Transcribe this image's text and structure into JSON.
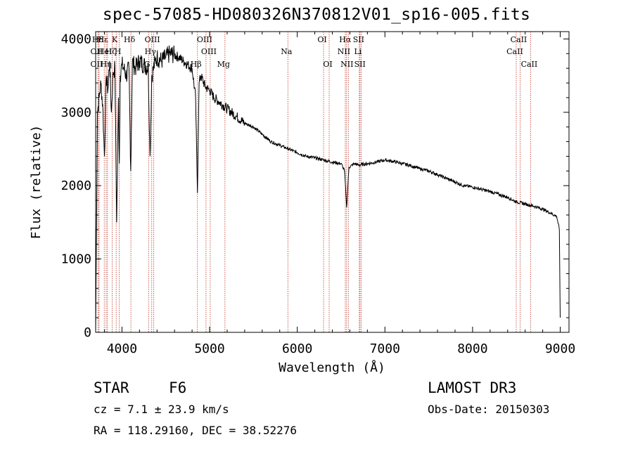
{
  "chart_data": {
    "type": "line",
    "title": "spec-57085-HD080326N370812V01_sp16-005.fits",
    "xlabel": "Wavelength (Å)",
    "ylabel": "Flux (relative)",
    "xlim": [
      3700,
      9100
    ],
    "ylim": [
      0,
      4100
    ],
    "x_ticks": [
      4000,
      5000,
      6000,
      7000,
      8000,
      9000
    ],
    "y_ticks": [
      0,
      1000,
      2000,
      3000,
      4000
    ],
    "series": [
      {
        "name": "spectrum",
        "x": [
          3700,
          3720,
          3740,
          3760,
          3780,
          3800,
          3820,
          3840,
          3860,
          3880,
          3900,
          3920,
          3940,
          3960,
          3970,
          3980,
          4000,
          4020,
          4050,
          4080,
          4100,
          4120,
          4150,
          4200,
          4250,
          4300,
          4320,
          4340,
          4360,
          4380,
          4400,
          4450,
          4500,
          4550,
          4600,
          4650,
          4700,
          4750,
          4800,
          4840,
          4861,
          4880,
          4900,
          4950,
          5000,
          5050,
          5100,
          5150,
          5200,
          5300,
          5400,
          5500,
          5600,
          5700,
          5800,
          5900,
          6000,
          6100,
          6200,
          6300,
          6400,
          6500,
          6540,
          6563,
          6590,
          6650,
          6700,
          6800,
          6900,
          7000,
          7100,
          7200,
          7300,
          7400,
          7500,
          7600,
          7700,
          7800,
          7900,
          8000,
          8100,
          8200,
          8300,
          8400,
          8500,
          8600,
          8700,
          8800,
          8900,
          8960,
          8990,
          9000
        ],
        "y": [
          0,
          3000,
          3200,
          3400,
          3100,
          2400,
          3500,
          3300,
          3700,
          3000,
          3550,
          3600,
          1500,
          3200,
          2300,
          3500,
          3650,
          3600,
          3500,
          3600,
          2200,
          3700,
          3600,
          3700,
          3650,
          3600,
          2400,
          3500,
          3600,
          3700,
          3750,
          3700,
          3750,
          3800,
          3780,
          3750,
          3700,
          3650,
          3600,
          3200,
          1900,
          3400,
          3500,
          3350,
          3300,
          3200,
          3150,
          3100,
          3050,
          2950,
          2850,
          2800,
          2700,
          2600,
          2550,
          2500,
          2450,
          2400,
          2380,
          2350,
          2320,
          2300,
          2200,
          1700,
          2250,
          2300,
          2280,
          2300,
          2320,
          2350,
          2330,
          2300,
          2270,
          2230,
          2200,
          2150,
          2100,
          2050,
          2000,
          1980,
          1950,
          1920,
          1880,
          1840,
          1780,
          1750,
          1720,
          1680,
          1620,
          1580,
          1400,
          200
        ]
      }
    ],
    "lines": [
      {
        "name": "Hδ",
        "wl": 3740,
        "row": 0
      },
      {
        "name": "OII",
        "wl": 3727,
        "row": 1
      },
      {
        "name": "OII",
        "wl": 3727,
        "row": 2
      },
      {
        "name": "Hε",
        "wl": 3798,
        "row": 0
      },
      {
        "name": "HeI",
        "wl": 3820,
        "row": 1
      },
      {
        "name": "Hη",
        "wl": 3835,
        "row": 2
      },
      {
        "name": "K",
        "wl": 3934,
        "row": 0
      },
      {
        "name": "H",
        "wl": 3969,
        "row": 1
      },
      {
        "name": "Hδ",
        "wl": 4102,
        "row": 0
      },
      {
        "name": "Hζ",
        "wl": 3889,
        "row": 1
      },
      {
        "name": "OIII",
        "wl": 4363,
        "row": 0
      },
      {
        "name": "Hγ",
        "wl": 4340,
        "row": 1
      },
      {
        "name": "G",
        "wl": 4304,
        "row": 2
      },
      {
        "name": "Hβ",
        "wl": 4861,
        "row": 2
      },
      {
        "name": "OIII",
        "wl": 4959,
        "row": 0
      },
      {
        "name": "OIII",
        "wl": 5007,
        "row": 1
      },
      {
        "name": "Mg",
        "wl": 5175,
        "row": 2
      },
      {
        "name": "Na",
        "wl": 5893,
        "row": 1
      },
      {
        "name": "OI",
        "wl": 6300,
        "row": 0
      },
      {
        "name": "OI",
        "wl": 6364,
        "row": 2
      },
      {
        "name": "Hα",
        "wl": 6563,
        "row": 0
      },
      {
        "name": "SII",
        "wl": 6716,
        "row": 0
      },
      {
        "name": "NII",
        "wl": 6548,
        "row": 1
      },
      {
        "name": "Li",
        "wl": 6708,
        "row": 1
      },
      {
        "name": "NII",
        "wl": 6583,
        "row": 2
      },
      {
        "name": "SII",
        "wl": 6731,
        "row": 2
      },
      {
        "name": "CaII",
        "wl": 8542,
        "row": 0
      },
      {
        "name": "CaII",
        "wl": 8498,
        "row": 1
      },
      {
        "name": "CaII",
        "wl": 8662,
        "row": 2
      }
    ],
    "colors": {
      "spectrum": "#000000",
      "line_marker": "#c0392b"
    }
  },
  "info": {
    "object_type": "STAR",
    "subclass": "F6",
    "survey": "LAMOST DR3",
    "cz": "cz = 7.1 ± 23.9 km/s",
    "obs_date": "Obs-Date: 20150303",
    "radec": "RA = 118.29160, DEC =  38.52276"
  }
}
